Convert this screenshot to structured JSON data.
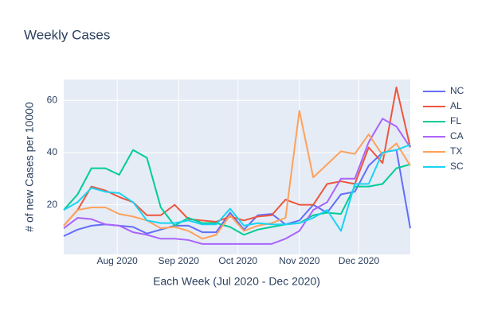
{
  "chart_data": {
    "type": "line",
    "title": "Weekly Cases",
    "xlabel": "Each Week (Jul 2020 - Dec 2020)",
    "ylabel": "# of new Cases per 10000",
    "x": [
      0,
      1,
      2,
      3,
      4,
      5,
      6,
      7,
      8,
      9,
      10,
      11,
      12,
      13,
      14,
      15,
      16,
      17,
      18,
      19,
      20,
      21,
      22,
      23,
      24,
      25
    ],
    "xlim": [
      0,
      25
    ],
    "xticks": [
      {
        "value": 3.86,
        "label": "Aug 2020"
      },
      {
        "value": 8.29,
        "label": "Sep 2020"
      },
      {
        "value": 12.57,
        "label": "Oct 2020"
      },
      {
        "value": 17,
        "label": "Nov 2020"
      },
      {
        "value": 21.29,
        "label": "Dec 2020"
      }
    ],
    "ylim": [
      1,
      68
    ],
    "yticks": [
      20,
      40,
      60
    ],
    "grid": true,
    "legend": "right",
    "series": [
      {
        "name": "NC",
        "color": "#636efa",
        "values": [
          8,
          10.5,
          12,
          12.5,
          12,
          11.5,
          9,
          10.5,
          12,
          12,
          9.5,
          9.5,
          17,
          10.5,
          16,
          16.5,
          12.5,
          14,
          20,
          17,
          24,
          25,
          35,
          40,
          41,
          11
        ]
      },
      {
        "name": "AL",
        "color": "#ef553b",
        "values": [
          12,
          18,
          27,
          25.5,
          23,
          21,
          16,
          16,
          20,
          14.5,
          14,
          13.5,
          15.5,
          14,
          15.5,
          16,
          22,
          20,
          20,
          28,
          29,
          28,
          42,
          36,
          65,
          42
        ]
      },
      {
        "name": "FL",
        "color": "#00cc96",
        "values": [
          18,
          24,
          34,
          34,
          31.5,
          41,
          38,
          19,
          12,
          15,
          13,
          13,
          11.5,
          8.5,
          10.5,
          11.5,
          12.5,
          13,
          16,
          17,
          16.5,
          27,
          27,
          28,
          34,
          35.5
        ]
      },
      {
        "name": "CA",
        "color": "#ab63fa",
        "values": [
          11,
          15,
          14.5,
          12.5,
          12,
          9.5,
          8.5,
          7,
          7,
          6.5,
          5,
          5,
          5,
          5,
          5,
          5,
          7,
          10,
          18,
          21,
          30,
          30,
          44,
          53,
          50,
          42
        ]
      },
      {
        "name": "TX",
        "color": "#ffa15a",
        "values": [
          12,
          18,
          19,
          19,
          16.5,
          15.5,
          14,
          11,
          11.5,
          10,
          7,
          8.5,
          16,
          10,
          12,
          13,
          15,
          56,
          30.5,
          35.5,
          40.5,
          39.5,
          47,
          39,
          43.5,
          35
        ]
      },
      {
        "name": "SC",
        "color": "#19d3f3",
        "values": [
          18,
          21,
          26.5,
          25,
          24.5,
          21,
          14,
          13,
          13,
          14,
          12.5,
          12.5,
          18.5,
          12,
          13,
          12.5,
          12.5,
          13,
          15,
          18,
          10,
          28,
          28,
          40,
          41,
          43
        ]
      }
    ]
  }
}
